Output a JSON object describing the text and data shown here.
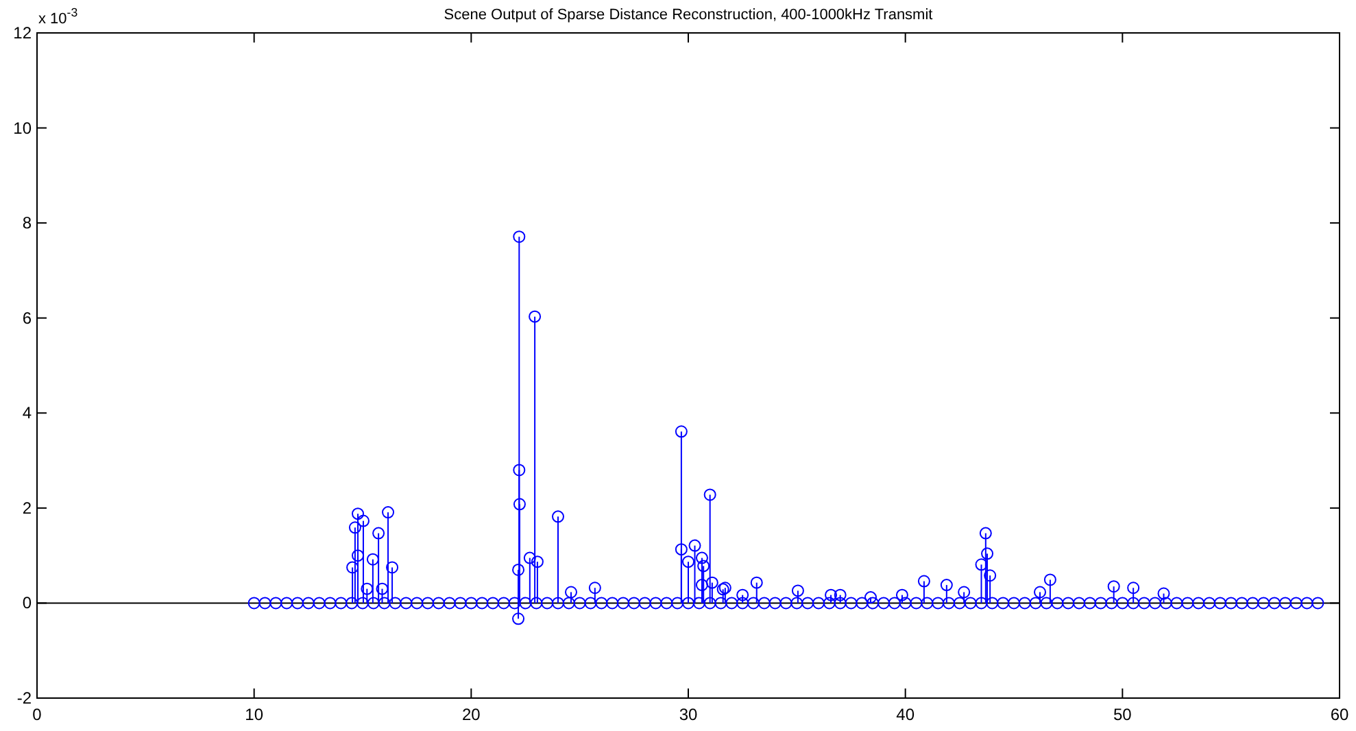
{
  "chart_data": {
    "type": "lollipop",
    "title": "Scene Output of Sparse Distance Reconstruction, 400-1000kHz Transmit",
    "annotations": [
      "x 10$^{-3}$"
    ],
    "xlim": [
      0,
      60
    ],
    "xticks": [
      0,
      10,
      20,
      30,
      40,
      50,
      60
    ],
    "ylim": [
      -2,
      12
    ],
    "yticks": [
      -2,
      0,
      2,
      4,
      6,
      8,
      10,
      12
    ],
    "grid": false,
    "marker": "circle",
    "line_style": "solid",
    "ref_lines": [
      {
        "axis": "y",
        "value": 0,
        "color": "#000000"
      }
    ],
    "series": [
      {
        "color": "#0000ff",
        "x": [
          10,
          10.5,
          11,
          11.5,
          12,
          12.5,
          13,
          13.5,
          14,
          14.5,
          15,
          15.5,
          16,
          16.5,
          17,
          17.5,
          18,
          18.5,
          19,
          19.5,
          20,
          20.5,
          21,
          21.5,
          22,
          22.5,
          23,
          23.5,
          24,
          24.5,
          25,
          25.5,
          26,
          26.5,
          27,
          27.5,
          28,
          28.5,
          29,
          29.5,
          30,
          30.5,
          31,
          31.5,
          32,
          32.5,
          33,
          33.5,
          34,
          34.5,
          35,
          35.5,
          36,
          36.5,
          37,
          37.5,
          38,
          38.5,
          39,
          39.5,
          40,
          40.5,
          41,
          41.5,
          42,
          42.5,
          43,
          43.5,
          44,
          44.5,
          45,
          45.5,
          46,
          46.5,
          47,
          47.5,
          48,
          48.5,
          49,
          49.5,
          50,
          50.5,
          51,
          51.5,
          52,
          52.5,
          53,
          53.5,
          54,
          54.5,
          55,
          55.5,
          56,
          56.5,
          57,
          57.5,
          58,
          58.5,
          59,
          14.53,
          14.65,
          14.78,
          14.78,
          15.03,
          15.47,
          15.73,
          16.17,
          16.36,
          15.2,
          15.9,
          22.17,
          22.21,
          22.21,
          22.23,
          22.17,
          22.93,
          22.7,
          23.05,
          24.0,
          24.6,
          25.7,
          29.68,
          29.68,
          30.0,
          30.3,
          30.63,
          30.7,
          31.0,
          31.1,
          30.63,
          31.6,
          31.7,
          32.5,
          33.15,
          35.05,
          36.57,
          37.0,
          38.4,
          39.85,
          40.86,
          41.9,
          42.7,
          43.5,
          43.7,
          43.77,
          43.9,
          46.2,
          46.67,
          49.6,
          50.5,
          51.9
        ],
        "values": [
          0,
          0,
          0,
          0,
          0,
          0,
          0,
          0,
          0,
          0,
          0,
          0,
          0,
          0,
          0,
          0,
          0,
          0,
          0,
          0,
          0,
          0,
          0,
          0,
          0,
          0,
          0,
          0,
          0,
          0,
          0,
          0,
          0,
          0,
          0,
          0,
          0,
          0,
          0,
          0,
          0,
          0,
          0,
          0,
          0,
          0,
          0,
          0,
          0,
          0,
          0,
          0,
          0,
          0,
          0,
          0,
          0,
          0,
          0,
          0,
          0,
          0,
          0,
          0,
          0,
          0,
          0,
          0,
          0,
          0,
          0,
          0,
          0,
          0,
          0,
          0,
          0,
          0,
          0,
          0,
          0,
          0,
          0,
          0,
          0,
          0,
          0,
          0,
          0,
          0,
          0,
          0,
          0,
          0,
          0,
          0,
          0,
          0,
          0,
          0.75,
          1.59,
          1.88,
          1.0,
          1.73,
          0.92,
          1.47,
          1.91,
          0.75,
          0.3,
          0.3,
          -0.33,
          7.71,
          2.8,
          2.08,
          0.7,
          6.03,
          0.95,
          0.87,
          1.82,
          0.23,
          0.32,
          3.61,
          1.13,
          0.87,
          1.21,
          0.95,
          0.78,
          2.28,
          0.43,
          0.38,
          0.29,
          0.32,
          0.17,
          0.43,
          0.26,
          0.17,
          0.17,
          0.12,
          0.17,
          0.46,
          0.38,
          0.23,
          0.81,
          1.47,
          1.04,
          0.58,
          0.23,
          0.49,
          0.35,
          0.32,
          0.2
        ]
      }
    ]
  }
}
